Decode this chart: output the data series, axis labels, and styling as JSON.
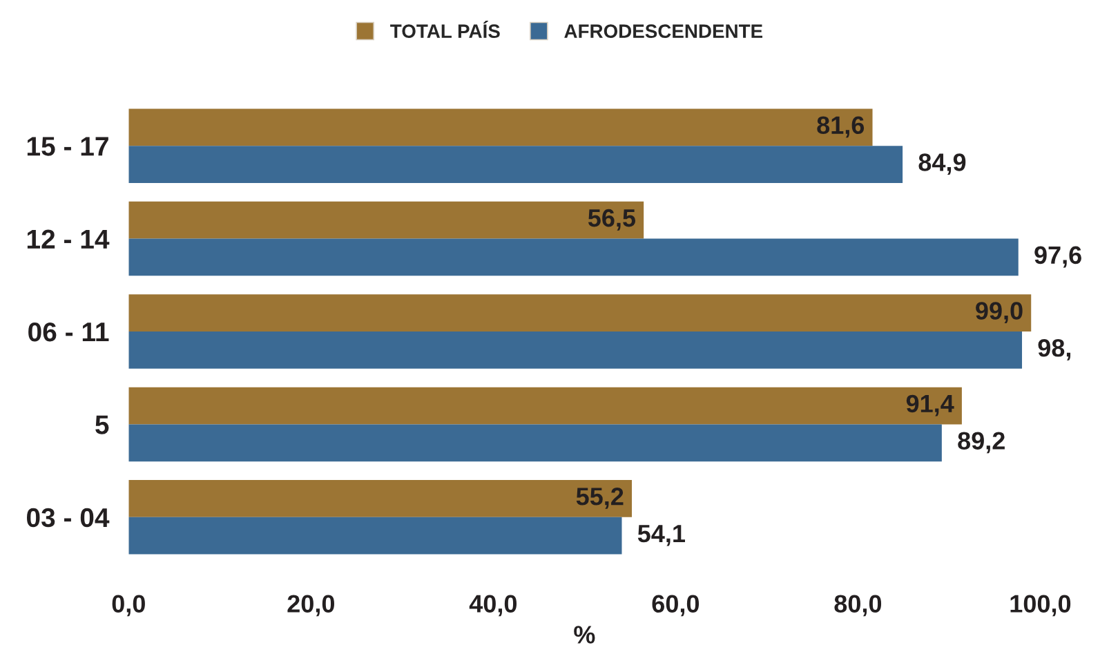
{
  "chart_data": {
    "type": "bar",
    "orientation": "horizontal",
    "categories": [
      "15 - 17",
      "12 - 14",
      "06 - 11",
      "5",
      "03 - 04"
    ],
    "series": [
      {
        "name": "TOTAL PAÍS",
        "color": "#9c7534",
        "values": [
          81.6,
          56.5,
          99.0,
          91.4,
          55.2
        ],
        "value_labels": [
          "81,6",
          "56,5",
          "99,0",
          "91,4",
          "55,2"
        ]
      },
      {
        "name": "AFRODESCENDENTE",
        "color": "#3b6a94",
        "values": [
          84.9,
          97.6,
          98,
          89.2,
          54.1
        ],
        "value_labels": [
          "84,9",
          "97,6",
          "98,",
          "89,2",
          "54,1"
        ]
      }
    ],
    "xlim": [
      0,
      100
    ],
    "xticks": [
      {
        "value": 0,
        "label": "0,0"
      },
      {
        "value": 20,
        "label": "20,0"
      },
      {
        "value": 40,
        "label": "40,0"
      },
      {
        "value": 60,
        "label": "60,0"
      },
      {
        "value": 80,
        "label": "80,0"
      },
      {
        "value": 100,
        "label": "100,0"
      }
    ],
    "xlabel": "%",
    "legend": "top"
  }
}
